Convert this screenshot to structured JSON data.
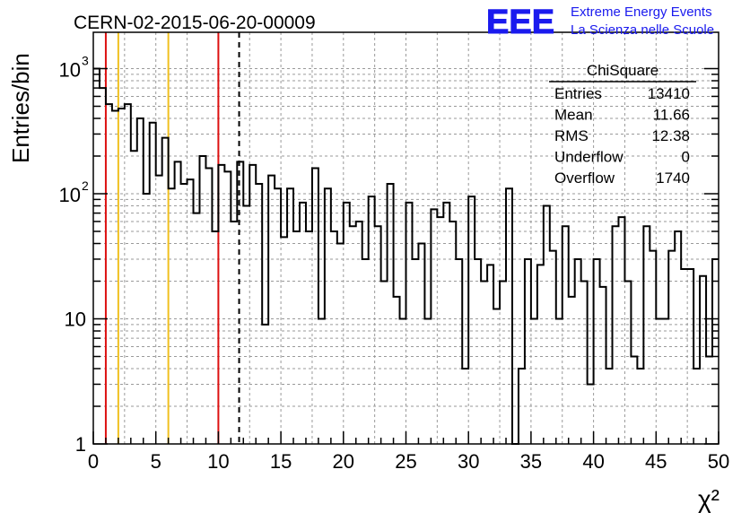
{
  "header": {
    "title": "CERN-02-2015-06-20-00009",
    "logo_text": "EEE",
    "logo_line1": "Extreme Energy Events",
    "logo_line2": "La Scienza nelle Scuole"
  },
  "stats": {
    "title": "ChiSquare",
    "rows": [
      {
        "label": "Entries",
        "value": "13410"
      },
      {
        "label": "Mean",
        "value": "11.66"
      },
      {
        "label": "RMS",
        "value": "12.38"
      },
      {
        "label": "Underflow",
        "value": "0"
      },
      {
        "label": "Overflow",
        "value": "1740"
      }
    ]
  },
  "colors": {
    "red_line": "#dd1111",
    "yellow_line": "#f0c020",
    "logo_blue": "#1a1aee",
    "histogram": "#000000"
  },
  "chart_data": {
    "type": "histogram",
    "title": "CERN-02-2015-06-20-00009",
    "xlabel": "χ²",
    "ylabel": "Entries/bin",
    "xlim": [
      0,
      50
    ],
    "ylim": [
      1,
      1800
    ],
    "yscale": "log",
    "bin_width": 0.5,
    "x_ticks": [
      "0",
      "5",
      "10",
      "15",
      "20",
      "25",
      "30",
      "35",
      "40",
      "45",
      "50"
    ],
    "y_ticks": [
      {
        "value": 1,
        "label": "1"
      },
      {
        "value": 10,
        "label": "10"
      },
      {
        "value": 100,
        "label": "10",
        "exp": "2"
      },
      {
        "value": 1000,
        "label": "10",
        "exp": "3"
      }
    ],
    "grid": true,
    "vertical_lines": [
      {
        "x": 1,
        "style": "red"
      },
      {
        "x": 2,
        "style": "yellow"
      },
      {
        "x": 6,
        "style": "yellow"
      },
      {
        "x": 10,
        "style": "red"
      },
      {
        "x": 11.66,
        "style": "dashed"
      }
    ],
    "values": [
      1000,
      700,
      520,
      460,
      480,
      520,
      220,
      400,
      100,
      370,
      140,
      280,
      110,
      180,
      120,
      130,
      70,
      200,
      160,
      50,
      170,
      150,
      60,
      180,
      80,
      170,
      120,
      9,
      140,
      110,
      45,
      110,
      50,
      85,
      50,
      160,
      10,
      110,
      50,
      40,
      85,
      55,
      60,
      30,
      95,
      55,
      20,
      120,
      15,
      10,
      85,
      30,
      40,
      10,
      75,
      65,
      85,
      60,
      30,
      4,
      95,
      30,
      20,
      27,
      12,
      20,
      110,
      1,
      4,
      30,
      10,
      27,
      80,
      35,
      10,
      55,
      15,
      30,
      20,
      3,
      30,
      18,
      4,
      55,
      65,
      20,
      5,
      4,
      55,
      35,
      10,
      10,
      35,
      50,
      25,
      25,
      4,
      22,
      5,
      30
    ]
  }
}
